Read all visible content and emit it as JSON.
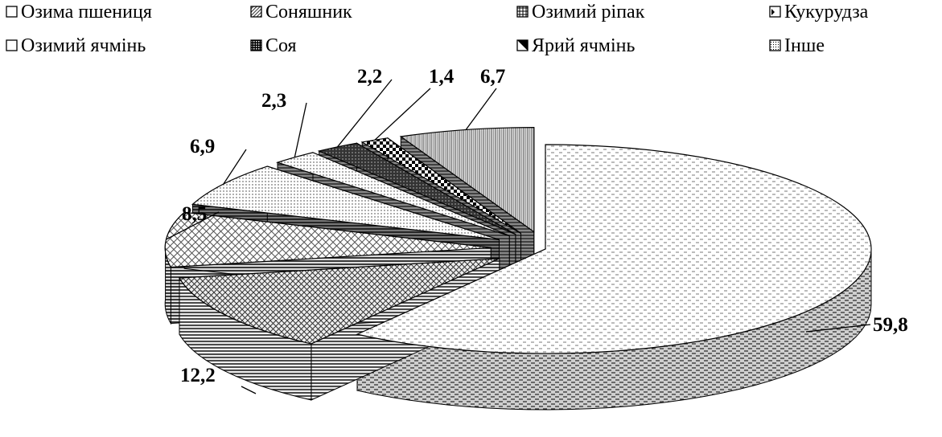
{
  "chart_data": {
    "type": "pie",
    "title": "",
    "categories": [
      "Озима пшениця",
      "Озимий ячмінь",
      "Соняшник",
      "Соя",
      "Озимий ріпак",
      "Ярий ячмінь",
      "Кукурудза",
      "Інше"
    ],
    "values": [
      59.8,
      12.2,
      8.5,
      6.9,
      2.3,
      2.2,
      1.4,
      6.7
    ],
    "data_labels": [
      "59,8",
      "12,2",
      "8,5",
      "6,9",
      "2,3",
      "2,2",
      "1,4",
      "6,7"
    ],
    "legend": {
      "placement": "top",
      "entries": [
        "Озима пшениця",
        "Соняшник",
        "Озимий ріпак",
        "Кукурудза",
        "Озимий ячмінь",
        "Соя",
        "Ярий ячмінь",
        "Інше"
      ]
    },
    "style": "3d-exploded-pie, black-and-white hatch patterns"
  }
}
